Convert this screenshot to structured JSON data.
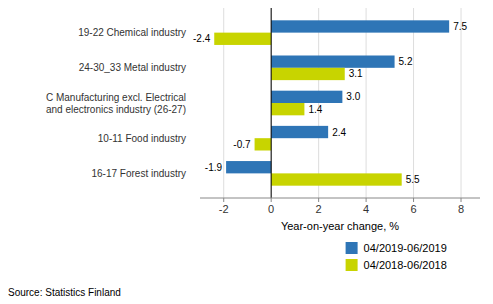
{
  "chart_data": {
    "type": "bar",
    "orientation": "horizontal",
    "categories": [
      "16-17 Forest industry",
      "10-11 Food industry",
      "C Manufacturing excl. Electrical\nand electronics industry (26-27)",
      "24-30_33 Metal industry",
      "19-22 Chemical industry"
    ],
    "series": [
      {
        "name": "04/2019-06/2019",
        "color": "#2E75B6",
        "values": [
          -1.9,
          2.4,
          3.0,
          5.2,
          7.5
        ],
        "value_labels": [
          "-1.9",
          "2.4",
          "3.0",
          "5.2",
          "7.5"
        ]
      },
      {
        "name": "04/2018-06/2018",
        "color": "#C8D400",
        "values": [
          5.5,
          -0.7,
          1.4,
          3.1,
          -2.4
        ],
        "value_labels": [
          "5.5",
          "-0.7",
          "1.4",
          "3.1",
          "-2.4"
        ]
      }
    ],
    "x_label": "Year-on-year change, %",
    "xlim": [
      -3.0,
      8.8
    ],
    "xticks": [
      -2,
      0,
      2,
      4,
      6,
      8
    ],
    "annotations": [
      "Source: Statistics Finland"
    ],
    "grid": true,
    "legend": "bottom",
    "data_labels": true
  }
}
